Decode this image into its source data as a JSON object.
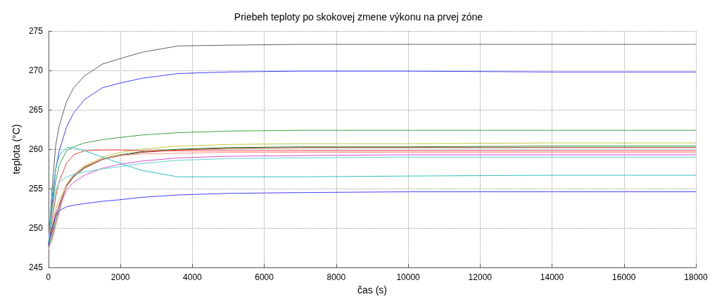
{
  "chart_data": {
    "type": "line",
    "title": "Priebeh teploty po skokovej zmene výkonu na prvej zóne",
    "xlabel": "čas (s)",
    "ylabel": "teplota (°C)",
    "x": [
      0,
      100,
      200,
      300,
      500,
      700,
      1000,
      1500,
      2000,
      2600,
      3600,
      5000,
      7000,
      10000,
      14000,
      18000
    ],
    "xlim": [
      0,
      18000
    ],
    "xticks": [
      0,
      2000,
      4000,
      6000,
      8000,
      10000,
      12000,
      14000,
      16000,
      18000
    ],
    "ylim": [
      245,
      275
    ],
    "yticks": [
      245,
      250,
      255,
      260,
      265,
      270,
      275
    ],
    "grid": true,
    "marker": "none",
    "line_style": "solid",
    "series": [
      {
        "color": "#606060",
        "values": [
          248,
          255,
          260.5,
          263,
          266,
          267.8,
          269.3,
          270.8,
          271.5,
          272.3,
          273.1,
          273.2,
          273.3,
          273.3,
          273.3,
          273.3
        ]
      },
      {
        "color": "#4040ff",
        "values": [
          248,
          253,
          257.5,
          259.8,
          262.8,
          264.6,
          266.3,
          267.8,
          268.4,
          269,
          269.6,
          269.8,
          269.9,
          269.9,
          269.8,
          269.8
        ]
      },
      {
        "color": "#40a040",
        "values": [
          248,
          252.5,
          256,
          258,
          259.8,
          260.3,
          260.8,
          261.2,
          261.5,
          261.8,
          262.1,
          262.3,
          262.4,
          262.4,
          262.4,
          262.4
        ]
      },
      {
        "color": "#c8c840",
        "values": [
          248.6,
          250.4,
          252.4,
          253.6,
          255.5,
          256.8,
          257.9,
          259,
          259.6,
          260,
          260.4,
          260.6,
          260.7,
          260.7,
          260.8,
          260.8
        ]
      },
      {
        "color": "#208020",
        "values": [
          247.6,
          248.9,
          250.8,
          252.4,
          255.4,
          256.6,
          257.7,
          258.8,
          259.3,
          259.7,
          260,
          260.2,
          260.3,
          260.3,
          260.4,
          260.4
        ]
      },
      {
        "color": "#a03020",
        "values": [
          248,
          249.5,
          251.5,
          253,
          255.3,
          256.5,
          257.6,
          258.7,
          259.2,
          259.6,
          259.9,
          260.1,
          260.2,
          260.2,
          260.2,
          260.2
        ]
      },
      {
        "color": "#ff4040",
        "values": [
          247.8,
          251,
          254,
          256,
          258.2,
          259.3,
          259.8,
          259.9,
          259.9,
          259.8,
          259.8,
          259.8,
          259.8,
          259.8,
          259.8,
          259.8
        ]
      },
      {
        "color": "#ff9090",
        "values": [
          247.3,
          248.4,
          250.2,
          252,
          255.5,
          256.8,
          257.8,
          258.8,
          259.2,
          259.4,
          259.5,
          259.6,
          259.6,
          259.6,
          259.6,
          259.6
        ]
      },
      {
        "color": "#d050d0",
        "values": [
          248.2,
          249.9,
          251.9,
          252.8,
          254.8,
          255.8,
          256.7,
          257.6,
          258.1,
          258.5,
          258.9,
          259.1,
          259.2,
          259.3,
          259.3,
          259.3
        ]
      },
      {
        "color": "#30c0c0",
        "values": [
          248,
          254,
          257.5,
          259.2,
          260.2,
          260.2,
          259.8,
          259,
          258.2,
          257.3,
          256.5,
          256.5,
          256.5,
          256.6,
          256.7,
          256.7
        ]
      },
      {
        "color": "#60d0d0",
        "values": [
          248,
          252,
          254.8,
          255.8,
          256.5,
          256.8,
          257.1,
          257.5,
          257.8,
          258.2,
          258.6,
          258.8,
          258.9,
          259,
          259,
          259
        ]
      },
      {
        "color": "#4040ff",
        "values": [
          247.8,
          250,
          251.5,
          252.2,
          252.7,
          252.9,
          253.1,
          253.4,
          253.6,
          253.9,
          254.2,
          254.4,
          254.5,
          254.6,
          254.6,
          254.6
        ]
      }
    ]
  }
}
